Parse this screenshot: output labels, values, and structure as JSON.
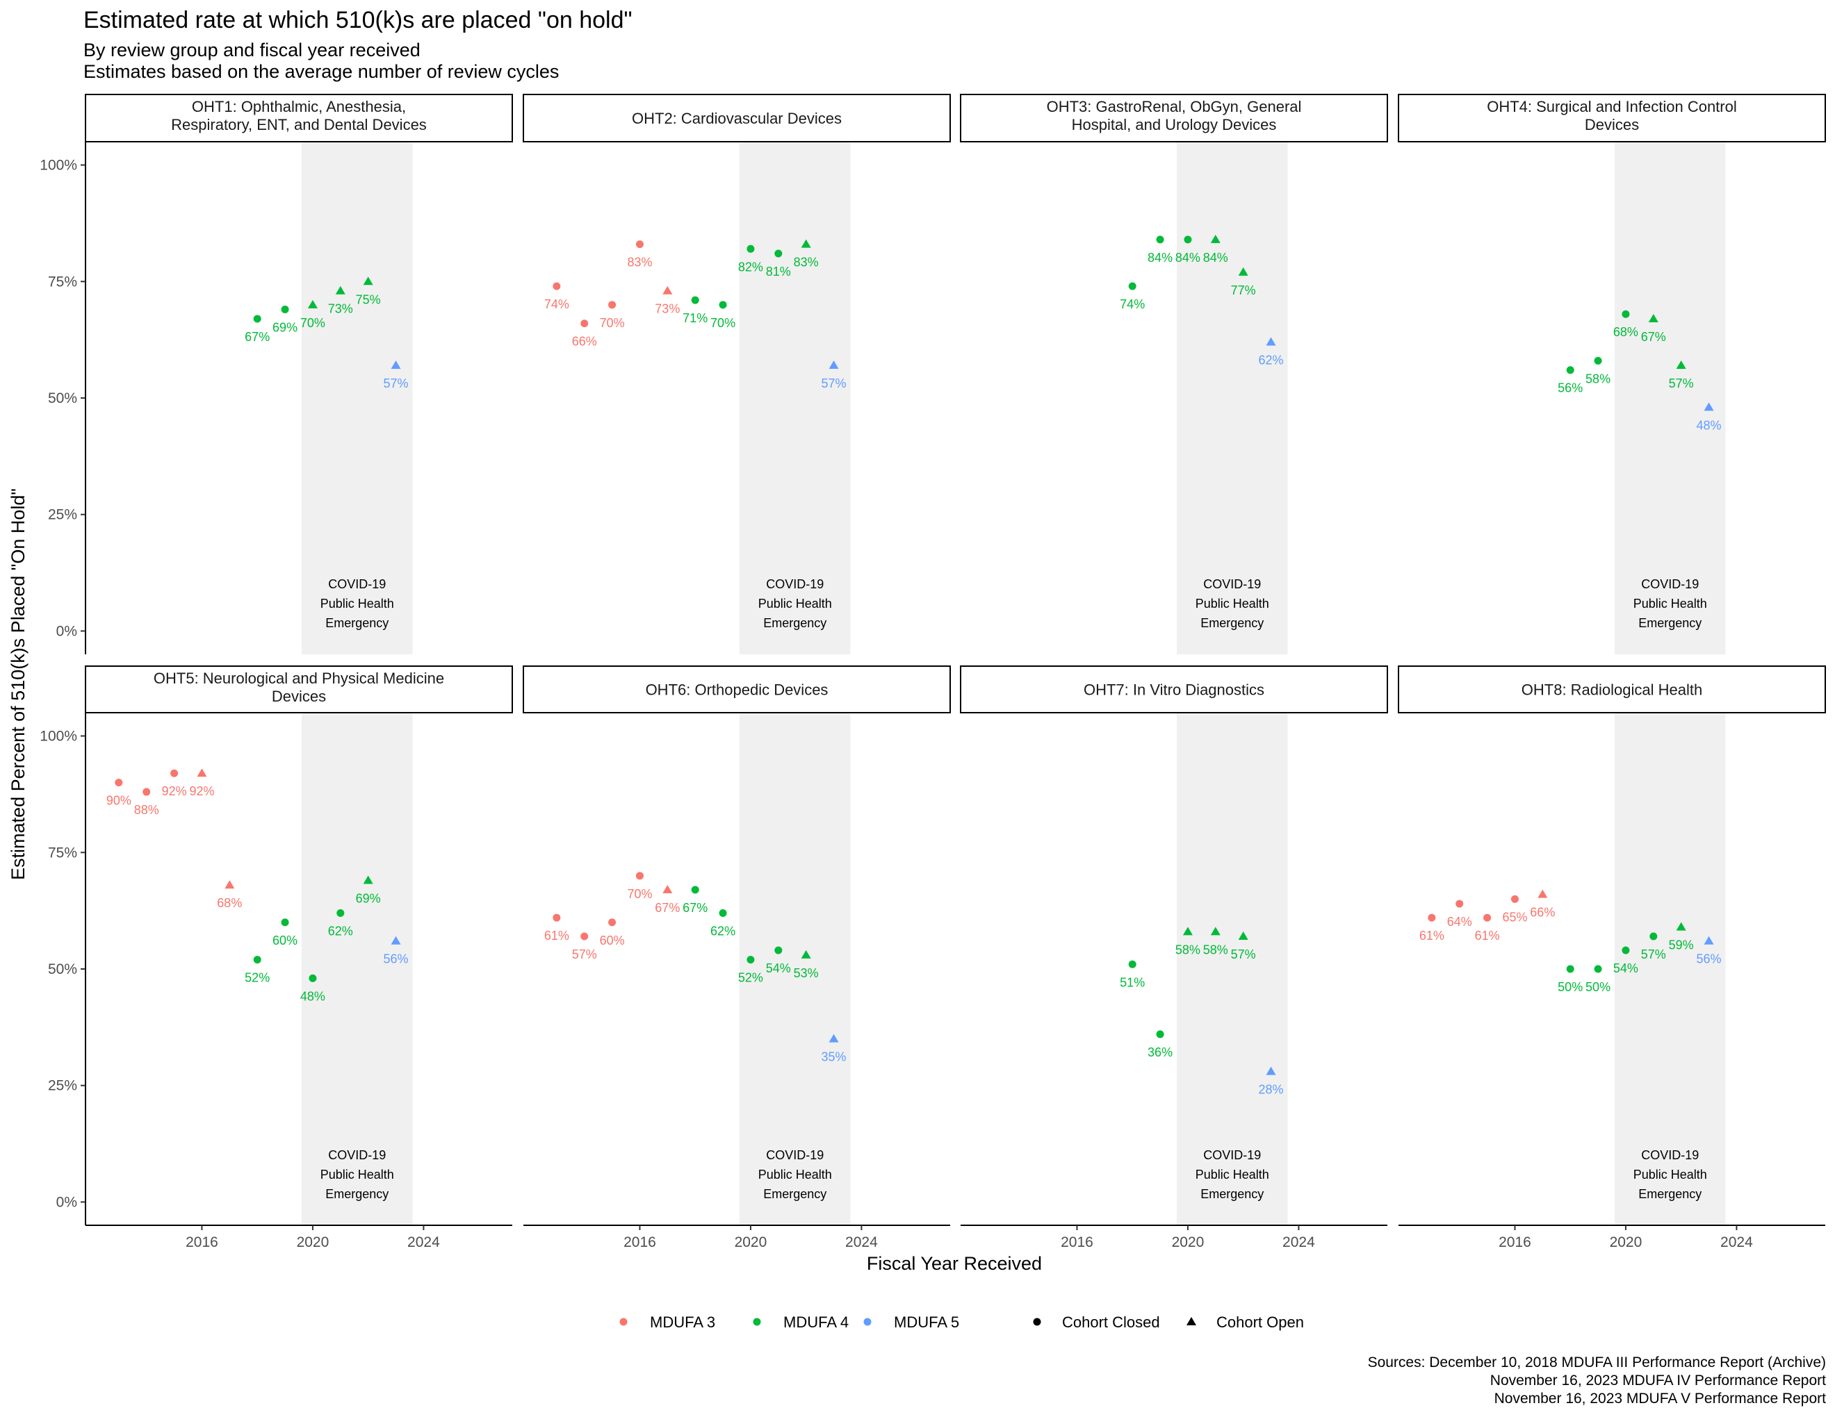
{
  "title": "Estimated rate at which 510(k)s are placed \"on hold\"",
  "subtitle_line1": "By review group and fiscal year received",
  "subtitle_line2": "Estimates based on the average number of review cycles",
  "caption": [
    "Sources: December 10, 2018 MDUFA III Performance Report (Archive)",
    "November 16, 2023 MDUFA IV Performance Report",
    "November 16, 2023 MDUFA V Performance Report"
  ],
  "colors": {
    "MDUFA 3": "#F8766D",
    "MDUFA 4": "#00BA38",
    "MDUFA 5": "#619CFF",
    "covid_band": "#F0F0F0",
    "axis": "#000000",
    "tick_label": "#4D4D4D"
  },
  "chart_data": {
    "type": "scatter",
    "title": "Estimated rate at which 510(k)s are placed \"on hold\"",
    "subtitle": "By review group and fiscal year received\nEstimates based on the average number of review cycles",
    "xlabel": "Fiscal Year Received",
    "ylabel": "Estimated Percent of 510(k)s Placed \"On Hold\"",
    "xlim": [
      2011.8,
      2027.2
    ],
    "ylim": [
      -5,
      105
    ],
    "x_ticks": [
      2016,
      2020,
      2024
    ],
    "y_ticks": [
      0,
      25,
      50,
      75,
      100
    ],
    "y_tick_labels": [
      "0%",
      "25%",
      "50%",
      "75%",
      "100%"
    ],
    "grid": false,
    "shaded_region": {
      "x": [
        2019.6,
        2023.6
      ],
      "label": [
        "COVID-19",
        "Public Health",
        "Emergency"
      ]
    },
    "legend": {
      "position": "bottom",
      "color": [
        "MDUFA 3",
        "MDUFA 4",
        "MDUFA 5"
      ],
      "shape": [
        {
          "label": "Cohort Closed",
          "shape": "circle"
        },
        {
          "label": "Cohort Open",
          "shape": "triangle"
        }
      ]
    },
    "panels": [
      {
        "title": [
          "OHT1: Ophthalmic, Anesthesia,",
          "Respiratory, ENT, and Dental Devices"
        ],
        "points": [
          {
            "x": 2018,
            "y": 67,
            "mdufa": "MDUFA 4",
            "cohort": "closed",
            "label": "67%"
          },
          {
            "x": 2019,
            "y": 69,
            "mdufa": "MDUFA 4",
            "cohort": "closed",
            "label": "69%"
          },
          {
            "x": 2020,
            "y": 70,
            "mdufa": "MDUFA 4",
            "cohort": "open",
            "label": "70%"
          },
          {
            "x": 2021,
            "y": 73,
            "mdufa": "MDUFA 4",
            "cohort": "open",
            "label": "73%"
          },
          {
            "x": 2022,
            "y": 75,
            "mdufa": "MDUFA 4",
            "cohort": "open",
            "label": "75%"
          },
          {
            "x": 2023,
            "y": 57,
            "mdufa": "MDUFA 5",
            "cohort": "open",
            "label": "57%"
          }
        ]
      },
      {
        "title": [
          "OHT2: Cardiovascular Devices"
        ],
        "points": [
          {
            "x": 2013,
            "y": 74,
            "mdufa": "MDUFA 3",
            "cohort": "closed",
            "label": "74%"
          },
          {
            "x": 2014,
            "y": 66,
            "mdufa": "MDUFA 3",
            "cohort": "closed",
            "label": "66%"
          },
          {
            "x": 2015,
            "y": 70,
            "mdufa": "MDUFA 3",
            "cohort": "closed",
            "label": "70%"
          },
          {
            "x": 2016,
            "y": 83,
            "mdufa": "MDUFA 3",
            "cohort": "closed",
            "label": "83%"
          },
          {
            "x": 2017,
            "y": 73,
            "mdufa": "MDUFA 3",
            "cohort": "open",
            "label": "73%"
          },
          {
            "x": 2018,
            "y": 71,
            "mdufa": "MDUFA 4",
            "cohort": "closed",
            "label": "71%"
          },
          {
            "x": 2019,
            "y": 70,
            "mdufa": "MDUFA 4",
            "cohort": "closed",
            "label": "70%"
          },
          {
            "x": 2020,
            "y": 82,
            "mdufa": "MDUFA 4",
            "cohort": "closed",
            "label": "82%"
          },
          {
            "x": 2021,
            "y": 81,
            "mdufa": "MDUFA 4",
            "cohort": "closed",
            "label": "81%"
          },
          {
            "x": 2022,
            "y": 83,
            "mdufa": "MDUFA 4",
            "cohort": "open",
            "label": "83%"
          },
          {
            "x": 2023,
            "y": 57,
            "mdufa": "MDUFA 5",
            "cohort": "open",
            "label": "57%"
          }
        ]
      },
      {
        "title": [
          "OHT3: GastroRenal, ObGyn, General",
          "Hospital, and Urology Devices"
        ],
        "points": [
          {
            "x": 2018,
            "y": 74,
            "mdufa": "MDUFA 4",
            "cohort": "closed",
            "label": "74%"
          },
          {
            "x": 2019,
            "y": 84,
            "mdufa": "MDUFA 4",
            "cohort": "closed",
            "label": "84%"
          },
          {
            "x": 2020,
            "y": 84,
            "mdufa": "MDUFA 4",
            "cohort": "closed",
            "label": "84%"
          },
          {
            "x": 2021,
            "y": 84,
            "mdufa": "MDUFA 4",
            "cohort": "open",
            "label": "84%"
          },
          {
            "x": 2022,
            "y": 77,
            "mdufa": "MDUFA 4",
            "cohort": "open",
            "label": "77%"
          },
          {
            "x": 2023,
            "y": 62,
            "mdufa": "MDUFA 5",
            "cohort": "open",
            "label": "62%"
          }
        ]
      },
      {
        "title": [
          "OHT4: Surgical and Infection Control",
          "Devices"
        ],
        "points": [
          {
            "x": 2018,
            "y": 56,
            "mdufa": "MDUFA 4",
            "cohort": "closed",
            "label": "56%"
          },
          {
            "x": 2019,
            "y": 58,
            "mdufa": "MDUFA 4",
            "cohort": "closed",
            "label": "58%"
          },
          {
            "x": 2020,
            "y": 68,
            "mdufa": "MDUFA 4",
            "cohort": "closed",
            "label": "68%"
          },
          {
            "x": 2021,
            "y": 67,
            "mdufa": "MDUFA 4",
            "cohort": "open",
            "label": "67%"
          },
          {
            "x": 2022,
            "y": 57,
            "mdufa": "MDUFA 4",
            "cohort": "open",
            "label": "57%"
          },
          {
            "x": 2023,
            "y": 48,
            "mdufa": "MDUFA 5",
            "cohort": "open",
            "label": "48%"
          }
        ]
      },
      {
        "title": [
          "OHT5: Neurological and Physical Medicine",
          "Devices"
        ],
        "points": [
          {
            "x": 2013,
            "y": 90,
            "mdufa": "MDUFA 3",
            "cohort": "closed",
            "label": "90%"
          },
          {
            "x": 2014,
            "y": 88,
            "mdufa": "MDUFA 3",
            "cohort": "closed",
            "label": "88%"
          },
          {
            "x": 2015,
            "y": 92,
            "mdufa": "MDUFA 3",
            "cohort": "closed",
            "label": "92%"
          },
          {
            "x": 2016,
            "y": 92,
            "mdufa": "MDUFA 3",
            "cohort": "open",
            "label": "92%"
          },
          {
            "x": 2017,
            "y": 68,
            "mdufa": "MDUFA 3",
            "cohort": "open",
            "label": "68%"
          },
          {
            "x": 2018,
            "y": 52,
            "mdufa": "MDUFA 4",
            "cohort": "closed",
            "label": "52%"
          },
          {
            "x": 2019,
            "y": 60,
            "mdufa": "MDUFA 4",
            "cohort": "closed",
            "label": "60%"
          },
          {
            "x": 2020,
            "y": 48,
            "mdufa": "MDUFA 4",
            "cohort": "closed",
            "label": "48%"
          },
          {
            "x": 2021,
            "y": 62,
            "mdufa": "MDUFA 4",
            "cohort": "closed",
            "label": "62%"
          },
          {
            "x": 2022,
            "y": 69,
            "mdufa": "MDUFA 4",
            "cohort": "open",
            "label": "69%"
          },
          {
            "x": 2023,
            "y": 56,
            "mdufa": "MDUFA 5",
            "cohort": "open",
            "label": "56%"
          }
        ]
      },
      {
        "title": [
          "OHT6: Orthopedic Devices"
        ],
        "points": [
          {
            "x": 2013,
            "y": 61,
            "mdufa": "MDUFA 3",
            "cohort": "closed",
            "label": "61%"
          },
          {
            "x": 2014,
            "y": 57,
            "mdufa": "MDUFA 3",
            "cohort": "closed",
            "label": "57%"
          },
          {
            "x": 2015,
            "y": 60,
            "mdufa": "MDUFA 3",
            "cohort": "closed",
            "label": "60%"
          },
          {
            "x": 2016,
            "y": 70,
            "mdufa": "MDUFA 3",
            "cohort": "closed",
            "label": "70%"
          },
          {
            "x": 2017,
            "y": 67,
            "mdufa": "MDUFA 3",
            "cohort": "open",
            "label": "67%"
          },
          {
            "x": 2018,
            "y": 67,
            "mdufa": "MDUFA 4",
            "cohort": "closed",
            "label": "67%"
          },
          {
            "x": 2019,
            "y": 62,
            "mdufa": "MDUFA 4",
            "cohort": "closed",
            "label": "62%"
          },
          {
            "x": 2020,
            "y": 52,
            "mdufa": "MDUFA 4",
            "cohort": "closed",
            "label": "52%"
          },
          {
            "x": 2021,
            "y": 54,
            "mdufa": "MDUFA 4",
            "cohort": "closed",
            "label": "54%"
          },
          {
            "x": 2022,
            "y": 53,
            "mdufa": "MDUFA 4",
            "cohort": "open",
            "label": "53%"
          },
          {
            "x": 2023,
            "y": 35,
            "mdufa": "MDUFA 5",
            "cohort": "open",
            "label": "35%"
          }
        ]
      },
      {
        "title": [
          "OHT7: In Vitro Diagnostics"
        ],
        "points": [
          {
            "x": 2018,
            "y": 51,
            "mdufa": "MDUFA 4",
            "cohort": "closed",
            "label": "51%"
          },
          {
            "x": 2019,
            "y": 36,
            "mdufa": "MDUFA 4",
            "cohort": "closed",
            "label": "36%"
          },
          {
            "x": 2020,
            "y": 58,
            "mdufa": "MDUFA 4",
            "cohort": "open",
            "label": "58%"
          },
          {
            "x": 2021,
            "y": 58,
            "mdufa": "MDUFA 4",
            "cohort": "open",
            "label": "58%"
          },
          {
            "x": 2022,
            "y": 57,
            "mdufa": "MDUFA 4",
            "cohort": "open",
            "label": "57%"
          },
          {
            "x": 2023,
            "y": 28,
            "mdufa": "MDUFA 5",
            "cohort": "open",
            "label": "28%"
          }
        ]
      },
      {
        "title": [
          "OHT8: Radiological Health"
        ],
        "points": [
          {
            "x": 2013,
            "y": 61,
            "mdufa": "MDUFA 3",
            "cohort": "closed",
            "label": "61%"
          },
          {
            "x": 2014,
            "y": 64,
            "mdufa": "MDUFA 3",
            "cohort": "closed",
            "label": "64%"
          },
          {
            "x": 2015,
            "y": 61,
            "mdufa": "MDUFA 3",
            "cohort": "closed",
            "label": "61%"
          },
          {
            "x": 2016,
            "y": 65,
            "mdufa": "MDUFA 3",
            "cohort": "closed",
            "label": "65%"
          },
          {
            "x": 2017,
            "y": 66,
            "mdufa": "MDUFA 3",
            "cohort": "open",
            "label": "66%"
          },
          {
            "x": 2018,
            "y": 50,
            "mdufa": "MDUFA 4",
            "cohort": "closed",
            "label": "50%"
          },
          {
            "x": 2019,
            "y": 50,
            "mdufa": "MDUFA 4",
            "cohort": "closed",
            "label": "50%"
          },
          {
            "x": 2020,
            "y": 54,
            "mdufa": "MDUFA 4",
            "cohort": "closed",
            "label": "54%"
          },
          {
            "x": 2021,
            "y": 57,
            "mdufa": "MDUFA 4",
            "cohort": "closed",
            "label": "57%"
          },
          {
            "x": 2022,
            "y": 59,
            "mdufa": "MDUFA 4",
            "cohort": "open",
            "label": "59%"
          },
          {
            "x": 2023,
            "y": 56,
            "mdufa": "MDUFA 5",
            "cohort": "open",
            "label": "56%"
          }
        ]
      }
    ]
  }
}
